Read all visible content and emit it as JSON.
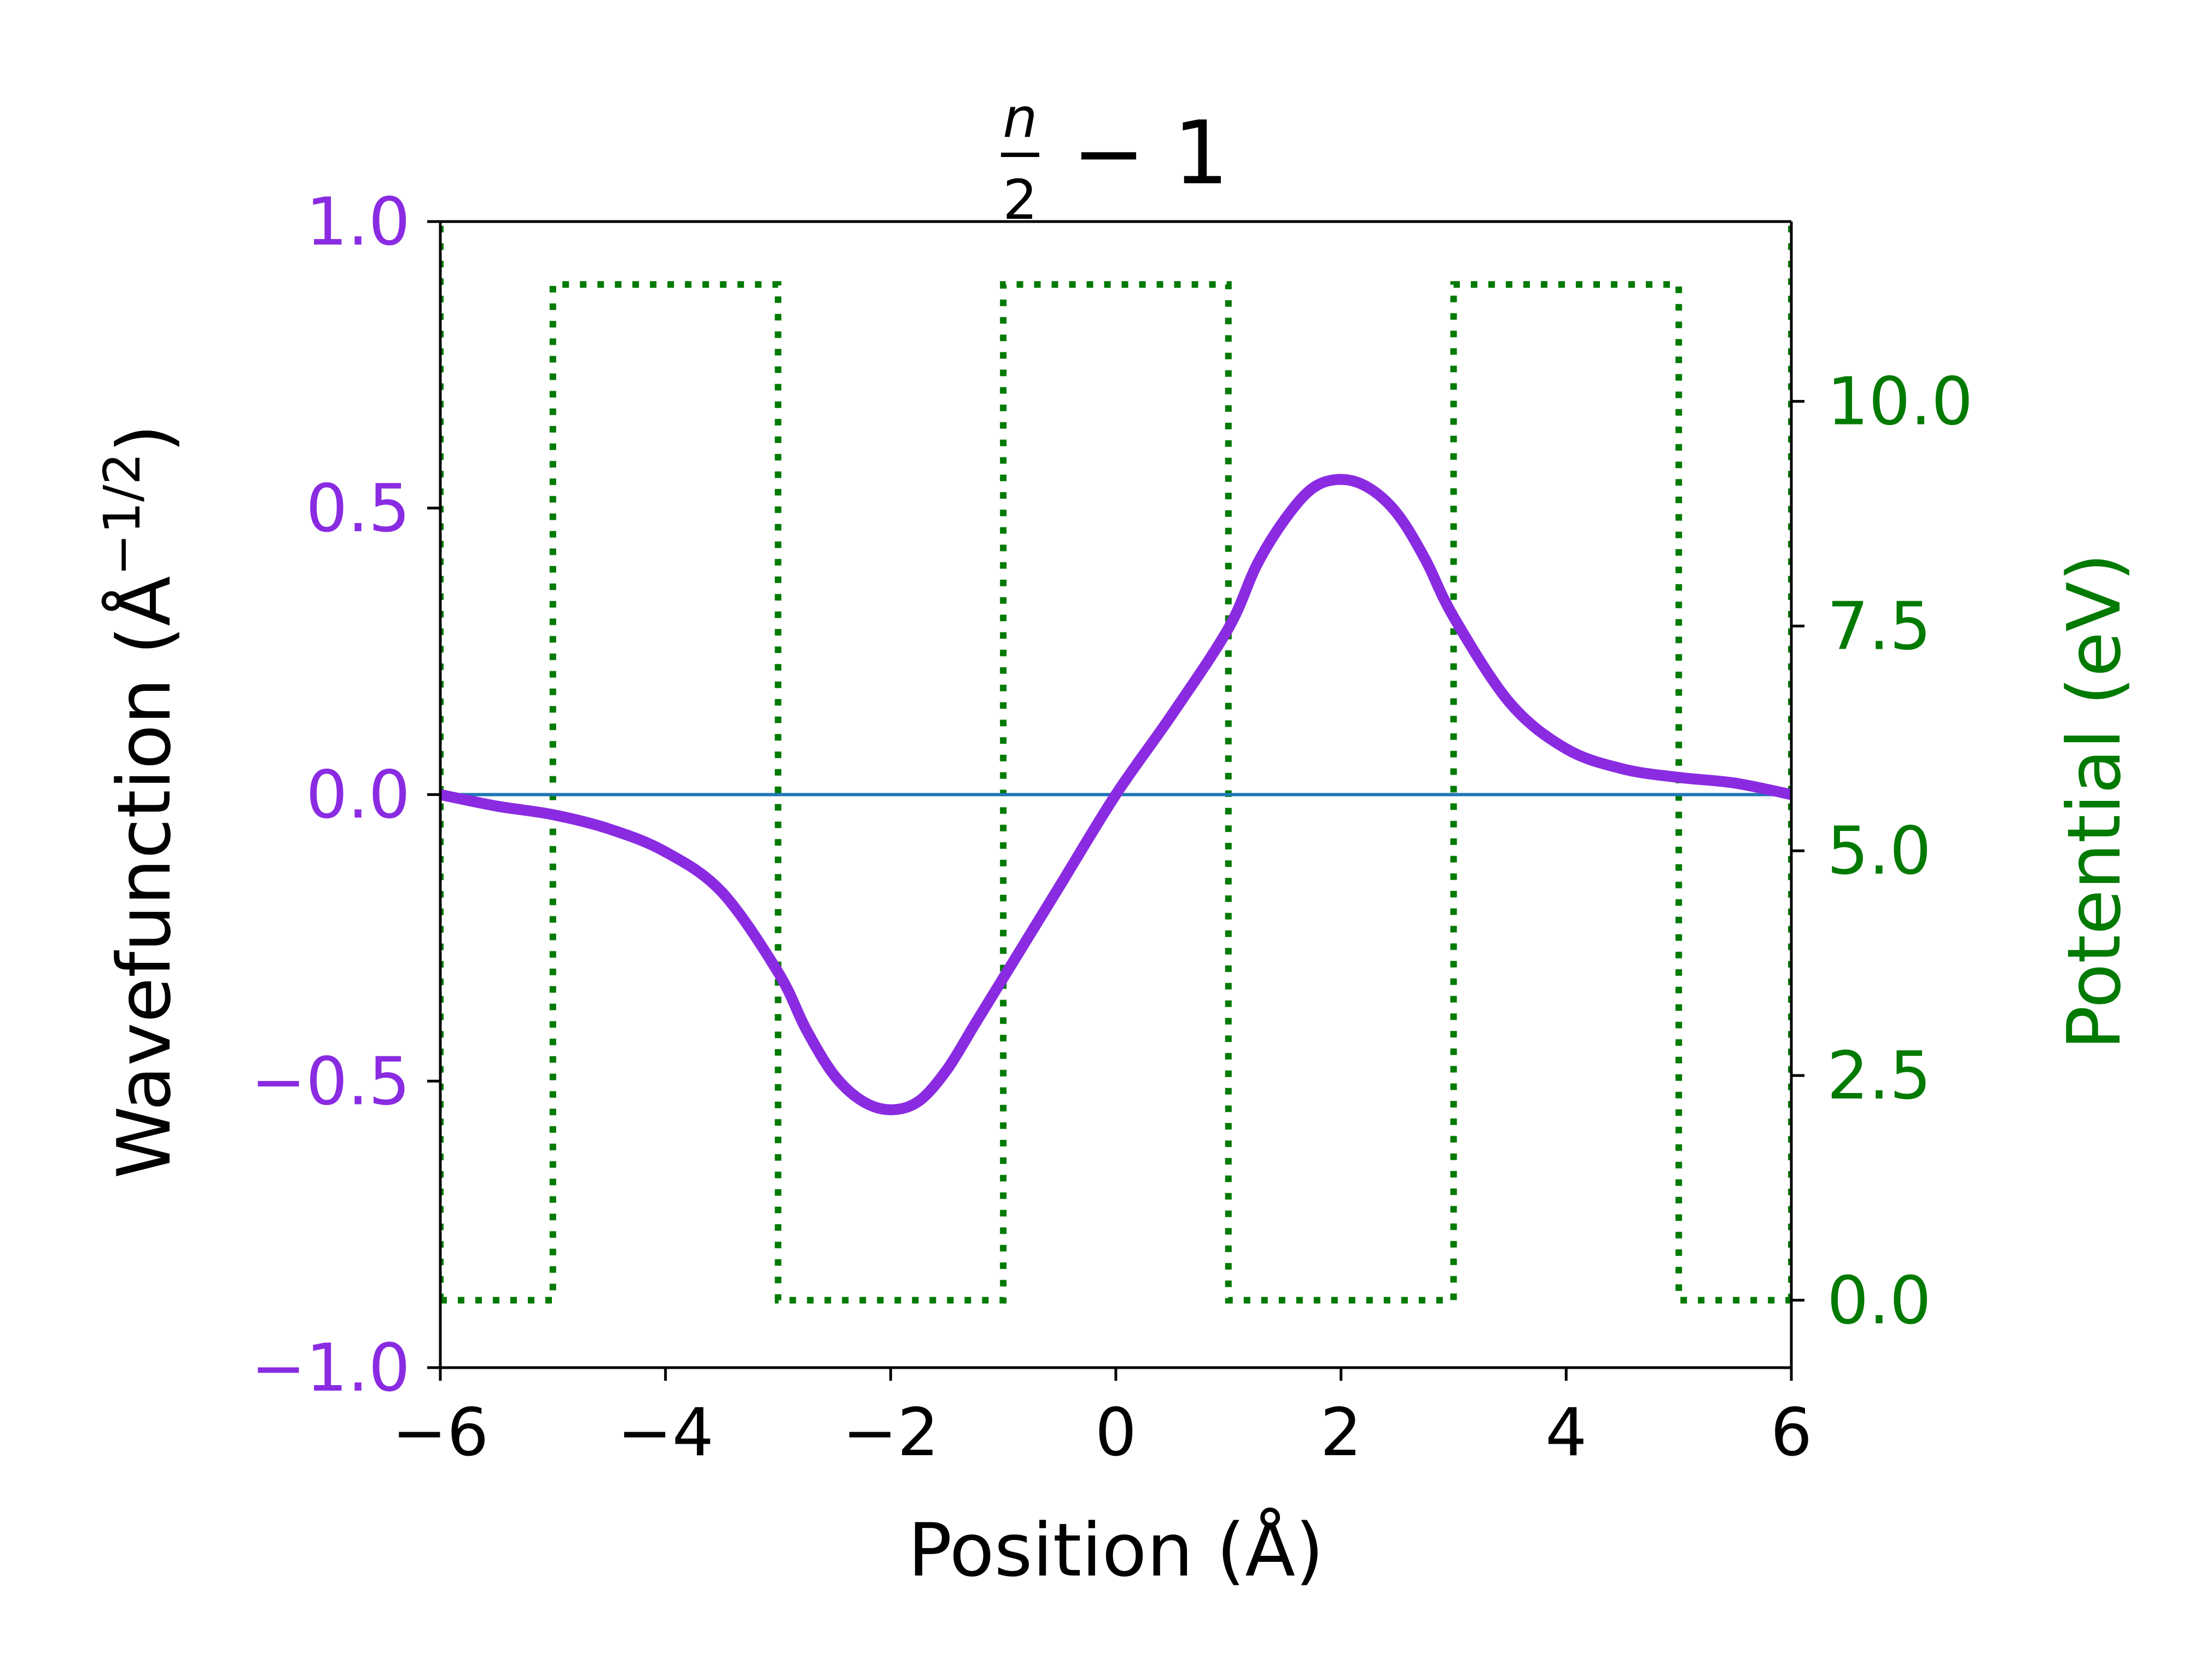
{
  "colors": {
    "wavefunction": "#8a2be2",
    "potential": "#007a00",
    "zero_line": "#1f77b4",
    "axes": "#000000",
    "background": "#ffffff"
  },
  "chart_data": {
    "type": "line",
    "title": {
      "fraction_numerator": "n",
      "fraction_denominator": "2",
      "rest": "− 1"
    },
    "xlabel": "Position (Å)",
    "ylabel_left": {
      "main": "Wavefunction (Å",
      "superscript": "−1/2",
      "close": ")"
    },
    "ylabel_right": "Potential (eV)",
    "xlim": [
      -6,
      6
    ],
    "ylim_left": [
      -1.0,
      1.0
    ],
    "ylim_right": [
      -0.75,
      12.0
    ],
    "x_ticks": [
      -6,
      -4,
      -2,
      0,
      2,
      4,
      6
    ],
    "x_tick_labels": [
      "−6",
      "−4",
      "−2",
      "0",
      "2",
      "4",
      "6"
    ],
    "left_ticks": [
      -1.0,
      -0.5,
      0.0,
      0.5,
      1.0
    ],
    "left_tick_labels": [
      "−1.0",
      "−0.5",
      "0.0",
      "0.5",
      "1.0"
    ],
    "right_ticks": [
      0.0,
      2.5,
      5.0,
      7.5,
      10.0
    ],
    "right_tick_labels": [
      "0.0",
      "2.5",
      "5.0",
      "7.5",
      "10.0"
    ],
    "grid": false,
    "series": [
      {
        "axis": "left",
        "style": "solid-thick",
        "x": [
          -6.0,
          -5.5,
          -5.0,
          -4.5,
          -4.0,
          -3.5,
          -3.0,
          -2.75,
          -2.5,
          -2.25,
          -2.0,
          -1.75,
          -1.5,
          -1.25,
          -1.0,
          -0.5,
          0.0,
          0.5,
          1.0,
          1.25,
          1.5,
          1.75,
          2.0,
          2.25,
          2.5,
          2.75,
          3.0,
          3.5,
          4.0,
          4.5,
          5.0,
          5.5,
          6.0
        ],
        "y": [
          0.0,
          -0.02,
          -0.035,
          -0.06,
          -0.1,
          -0.17,
          -0.31,
          -0.41,
          -0.49,
          -0.535,
          -0.55,
          -0.535,
          -0.48,
          -0.4,
          -0.32,
          -0.16,
          0.0,
          0.14,
          0.29,
          0.4,
          0.48,
          0.535,
          0.55,
          0.535,
          0.49,
          0.41,
          0.31,
          0.16,
          0.08,
          0.045,
          0.03,
          0.02,
          0.0
        ]
      },
      {
        "axis": "right",
        "style": "dotted",
        "x": [
          -6.0,
          -5.0,
          -5.0,
          -3.0,
          -3.0,
          -1.0,
          -1.0,
          1.0,
          1.0,
          3.0,
          3.0,
          5.0,
          5.0,
          6.0
        ],
        "y": [
          0.0,
          0.0,
          11.3,
          11.3,
          0.0,
          0.0,
          11.3,
          11.3,
          0.0,
          0.0,
          11.3,
          11.3,
          0.0,
          0.0
        ]
      },
      {
        "axis": "right",
        "style": "dotted",
        "x": [
          -6.0,
          -6.0
        ],
        "y": [
          0.0,
          12.0
        ]
      },
      {
        "axis": "right",
        "style": "dotted",
        "x": [
          6.0,
          6.0
        ],
        "y": [
          0.0,
          12.0
        ]
      },
      {
        "axis": "left",
        "style": "solid-thin",
        "x": [
          -6.0,
          6.0
        ],
        "y": [
          0.0,
          0.0
        ]
      }
    ]
  }
}
